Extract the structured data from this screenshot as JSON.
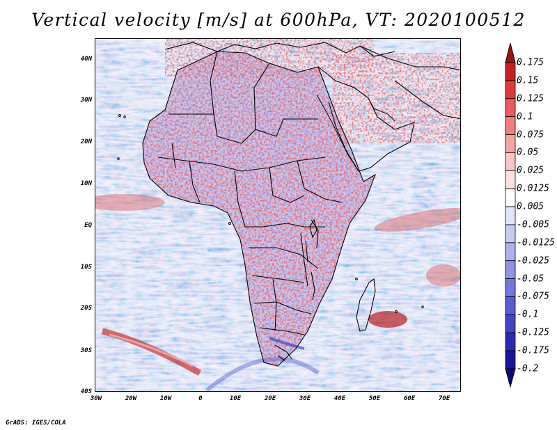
{
  "title": "Vertical velocity [m/s] at 600hPa, VT: 2020100512",
  "map": {
    "lat_labels": [
      "40N",
      "30N",
      "20N",
      "10N",
      "EQ",
      "10S",
      "20S",
      "30S",
      "40S"
    ],
    "lon_labels": [
      "30W",
      "20W",
      "10W",
      "0",
      "10E",
      "20E",
      "30E",
      "40E",
      "50E",
      "60E",
      "70E"
    ],
    "lat_range": [
      -40,
      45
    ],
    "lon_range": [
      -30,
      75
    ]
  },
  "colorbar": {
    "levels": [
      "0.175",
      "0.15",
      "0.125",
      "0.1",
      "0.075",
      "0.05",
      "0.025",
      "0.0125",
      "0.005",
      "-0.005",
      "-0.0125",
      "-0.025",
      "-0.05",
      "-0.075",
      "-0.1",
      "-0.125",
      "-0.175",
      "-0.2"
    ],
    "colors": [
      "#a01010",
      "#c42222",
      "#dc3b3b",
      "#e85c5c",
      "#f07f7f",
      "#f6a3a3",
      "#f9c5c5",
      "#fbe0e0",
      "#ffffff",
      "#e2e4f8",
      "#c8cbf1",
      "#aeb1ea",
      "#9194e2",
      "#7478da",
      "#5a5cd0",
      "#4344c2",
      "#2c2bb0",
      "#1a1596",
      "#0c0a7a"
    ]
  },
  "credit": "GrADS: IGES/COLA"
}
